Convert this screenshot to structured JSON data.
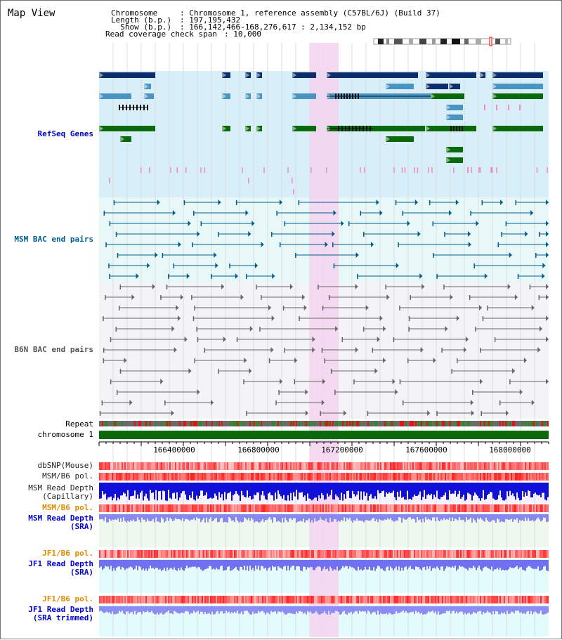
{
  "title": "Map View",
  "header": {
    "chromosome_key": "Chromosome     ",
    "chromosome_val": ": Chromosome 1, reference assembly (C57BL/6J) (Build 37)",
    "length_key": "Length (b.p.) ",
    "length_val": ": 197,195,432",
    "show_key": "  Show (b.p.) ",
    "show_val": ": 166,142,466-168,276,617 : 2,134,152 bp",
    "coverage_key": "Read coverage check span",
    "coverage_val": ": 10,000"
  },
  "tracks": {
    "refseq": {
      "label": "RefSeq Genes",
      "color": "#0000cc",
      "bg": "#d8eef8"
    },
    "msm_bac": {
      "label": "MSM BAC end pairs",
      "color": "#005d8c",
      "bg": "#e8f8f8"
    },
    "b6n_bac": {
      "label": "B6N BAC end pairs",
      "color": "#555555",
      "bg": "#f4f4f8"
    },
    "repeat": {
      "label": "Repeat"
    },
    "chromosome": {
      "label": "chromosome 1"
    },
    "dbsnp": {
      "label": "dbSNP(Mouse)"
    },
    "msm_b6_pol": {
      "label": "MSM/B6 pol."
    },
    "msm_depth_cap": {
      "label1": "MSM Read Depth",
      "label2": "(Capillary)"
    },
    "msm_b6_pol2": {
      "label": "MSM/B6 pol.",
      "color": "#e08a00"
    },
    "msm_depth_sra": {
      "label1": "MSM Read Depth",
      "label2": "(SRA)"
    },
    "jf1_b6_pol": {
      "label": "JF1/B6 pol.",
      "color": "#e08a00"
    },
    "jf1_depth_sra": {
      "label1": "JF1 Read Depth",
      "label2": "(SRA)"
    },
    "jf1_b6_pol2": {
      "label": "JF1/B6 pol.",
      "color": "#e08a00"
    },
    "jf1_depth_trim": {
      "label1": "JF1 Read Depth",
      "label2": "(SRA trimmed)"
    }
  },
  "axis": {
    "ticks": [
      "166400000",
      "166800000",
      "167200000",
      "167600000",
      "168000000"
    ]
  },
  "colors": {
    "highlight": "#f4d4f0",
    "refseq_dark": "#0c2e6e",
    "refseq_mid": "#4a94c4",
    "refseq_green": "#0a6a0a",
    "depth_dark": "#1010d8",
    "depth_light": "#7070f0"
  }
}
